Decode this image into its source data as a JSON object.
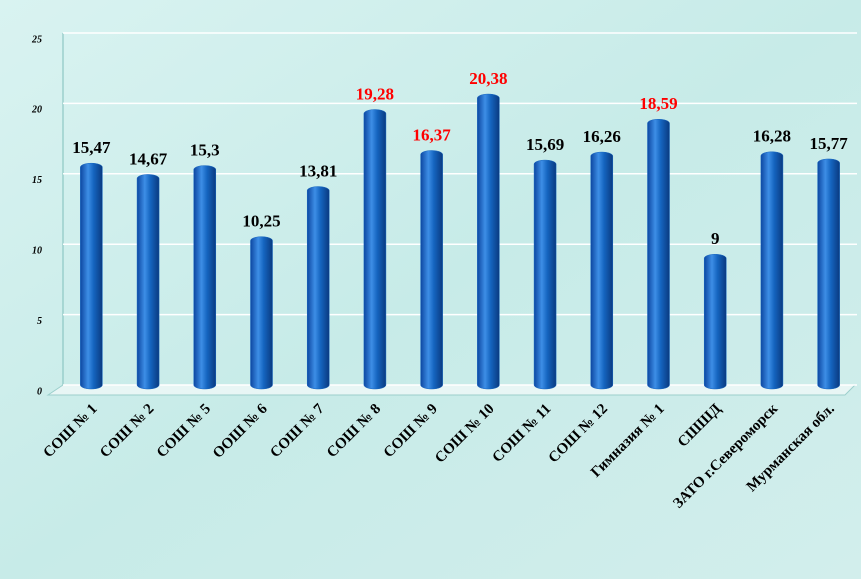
{
  "chart_data": {
    "type": "bar",
    "categories": [
      "СОШ № 1",
      "СОШ № 2",
      "СОШ № 5",
      "ООШ № 6",
      "СОШ № 7",
      "СОШ № 8",
      "СОШ № 9",
      "СОШ № 10",
      "СОШ № 11",
      "СОШ № 12",
      "Гимназия № 1",
      "СШШД",
      "ЗАТО г.Североморск",
      "Мурманская обл."
    ],
    "values": [
      15.47,
      14.67,
      15.3,
      10.25,
      13.81,
      19.28,
      16.37,
      20.38,
      15.69,
      16.26,
      18.59,
      9,
      16.28,
      15.77
    ],
    "value_labels": [
      "15,47",
      "14,67",
      "15,3",
      "10,25",
      "13,81",
      "19,28",
      "16,37",
      "20,38",
      "15,69",
      "16,26",
      "18,59",
      "9",
      "16,28",
      "15,77"
    ],
    "value_label_colors": [
      "#000000",
      "#000000",
      "#000000",
      "#000000",
      "#000000",
      "#ff0000",
      "#ff0000",
      "#ff0000",
      "#000000",
      "#000000",
      "#ff0000",
      "#000000",
      "#000000",
      "#000000"
    ],
    "color": "#1565c0",
    "ylim": [
      0,
      25
    ],
    "yticks": [
      0,
      5,
      10,
      15,
      20,
      25
    ],
    "grid": true
  }
}
